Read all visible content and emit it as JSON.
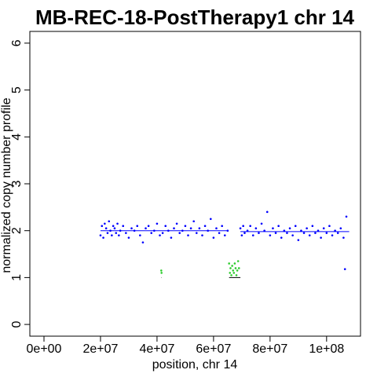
{
  "chart_data": {
    "type": "scatter",
    "title": "MB-REC-18-PostTherapy1 chr 14",
    "xlabel": "position, chr 14",
    "ylabel": "normalized copy number profile",
    "xlim": [
      -5000000,
      112000000
    ],
    "ylim": [
      -0.25,
      6.25
    ],
    "x_ticks": [
      {
        "value": 0,
        "label": "0e+00"
      },
      {
        "value": 20000000,
        "label": "2e+07"
      },
      {
        "value": 40000000,
        "label": "4e+07"
      },
      {
        "value": 60000000,
        "label": "6e+07"
      },
      {
        "value": 80000000,
        "label": "8e+07"
      },
      {
        "value": 100000000,
        "label": "1e+08"
      }
    ],
    "y_ticks": [
      {
        "value": 0,
        "label": "0"
      },
      {
        "value": 1,
        "label": "1"
      },
      {
        "value": 2,
        "label": "2"
      },
      {
        "value": 3,
        "label": "3"
      },
      {
        "value": 4,
        "label": "4"
      },
      {
        "value": 5,
        "label": "5"
      },
      {
        "value": 6,
        "label": "6"
      }
    ],
    "grid": false,
    "legend": "none",
    "series": [
      {
        "color": "#0000ff",
        "points": [
          [
            20000000,
            1.9
          ],
          [
            20500000,
            2.1
          ],
          [
            21000000,
            1.85
          ],
          [
            21500000,
            2.15
          ],
          [
            22000000,
            2.05
          ],
          [
            22500000,
            1.95
          ],
          [
            23000000,
            2.2
          ],
          [
            23500000,
            2.0
          ],
          [
            24000000,
            1.9
          ],
          [
            24500000,
            2.1
          ],
          [
            25000000,
            2.05
          ],
          [
            25500000,
            1.95
          ],
          [
            26000000,
            2.15
          ],
          [
            26500000,
            1.9
          ],
          [
            27000000,
            2.0
          ],
          [
            28000000,
            2.1
          ],
          [
            29000000,
            1.95
          ],
          [
            30000000,
            1.85
          ],
          [
            31000000,
            2.05
          ],
          [
            32000000,
            2.0
          ],
          [
            33000000,
            2.1
          ],
          [
            34000000,
            1.9
          ],
          [
            35000000,
            1.75
          ],
          [
            36000000,
            2.05
          ],
          [
            37000000,
            2.1
          ],
          [
            38000000,
            1.95
          ],
          [
            39000000,
            2.0
          ],
          [
            40000000,
            2.15
          ],
          [
            41000000,
            1.9
          ],
          [
            42000000,
            1.95
          ],
          [
            43000000,
            2.1
          ],
          [
            44000000,
            2.0
          ],
          [
            45000000,
            1.85
          ],
          [
            46000000,
            2.05
          ],
          [
            47000000,
            2.15
          ],
          [
            48000000,
            1.95
          ],
          [
            49000000,
            2.0
          ],
          [
            50000000,
            2.1
          ],
          [
            51000000,
            1.9
          ],
          [
            52000000,
            2.05
          ],
          [
            53000000,
            2.2
          ],
          [
            54000000,
            1.95
          ],
          [
            55000000,
            2.05
          ],
          [
            56000000,
            1.9
          ],
          [
            57000000,
            2.1
          ],
          [
            58000000,
            2.0
          ],
          [
            59000000,
            2.25
          ],
          [
            60000000,
            1.85
          ],
          [
            61000000,
            2.05
          ],
          [
            62000000,
            1.95
          ],
          [
            63000000,
            2.1
          ],
          [
            64000000,
            1.9
          ],
          [
            65000000,
            2.0
          ],
          [
            69500000,
            2.05
          ],
          [
            70000000,
            1.9
          ],
          [
            70500000,
            2.1
          ],
          [
            71000000,
            1.95
          ],
          [
            72000000,
            2.0
          ],
          [
            73000000,
            2.1
          ],
          [
            74000000,
            1.9
          ],
          [
            75000000,
            2.05
          ],
          [
            76000000,
            1.95
          ],
          [
            77000000,
            2.15
          ],
          [
            78000000,
            2.0
          ],
          [
            79000000,
            2.4
          ],
          [
            80000000,
            1.9
          ],
          [
            81000000,
            2.05
          ],
          [
            82000000,
            1.95
          ],
          [
            83000000,
            2.1
          ],
          [
            84000000,
            1.85
          ],
          [
            85000000,
            2.0
          ],
          [
            86000000,
            1.95
          ],
          [
            87000000,
            2.05
          ],
          [
            88000000,
            1.9
          ],
          [
            89000000,
            2.1
          ],
          [
            90000000,
            1.8
          ],
          [
            91000000,
            2.0
          ],
          [
            92000000,
            1.95
          ],
          [
            93000000,
            2.05
          ],
          [
            94000000,
            1.9
          ],
          [
            95000000,
            2.1
          ],
          [
            96000000,
            1.95
          ],
          [
            97000000,
            2.0
          ],
          [
            98000000,
            1.85
          ],
          [
            99000000,
            2.05
          ],
          [
            100000000,
            1.95
          ],
          [
            101000000,
            2.1
          ],
          [
            102000000,
            1.9
          ],
          [
            103000000,
            2.0
          ],
          [
            104000000,
            1.95
          ],
          [
            105000000,
            2.05
          ],
          [
            106000000,
            1.85
          ],
          [
            107000000,
            2.3
          ],
          [
            106500000,
            1.18
          ]
        ]
      },
      {
        "color": "#2ecc2e",
        "points": [
          [
            41500000,
            1.15
          ],
          [
            41600000,
            1.1
          ],
          [
            65500000,
            1.3
          ],
          [
            65800000,
            1.1
          ],
          [
            66000000,
            1.2
          ],
          [
            66300000,
            1.05
          ],
          [
            66600000,
            1.25
          ],
          [
            66900000,
            1.15
          ],
          [
            67200000,
            1.1
          ],
          [
            67500000,
            1.3
          ],
          [
            67800000,
            1.2
          ],
          [
            68100000,
            1.05
          ],
          [
            68400000,
            1.15
          ],
          [
            68700000,
            1.35
          ],
          [
            69000000,
            1.2
          ]
        ]
      }
    ],
    "segments": [
      {
        "color": "#0000ff",
        "x0": 20000000,
        "x1": 65000000,
        "y": 2.0
      },
      {
        "color": "#0000ff",
        "x0": 69500000,
        "x1": 108000000,
        "y": 1.98
      },
      {
        "color": "#000000",
        "x0": 65500000,
        "x1": 69500000,
        "y": 1.0
      },
      {
        "color": "#000000",
        "x0": 41500000,
        "x1": 41600000,
        "y": 1.0
      }
    ]
  }
}
